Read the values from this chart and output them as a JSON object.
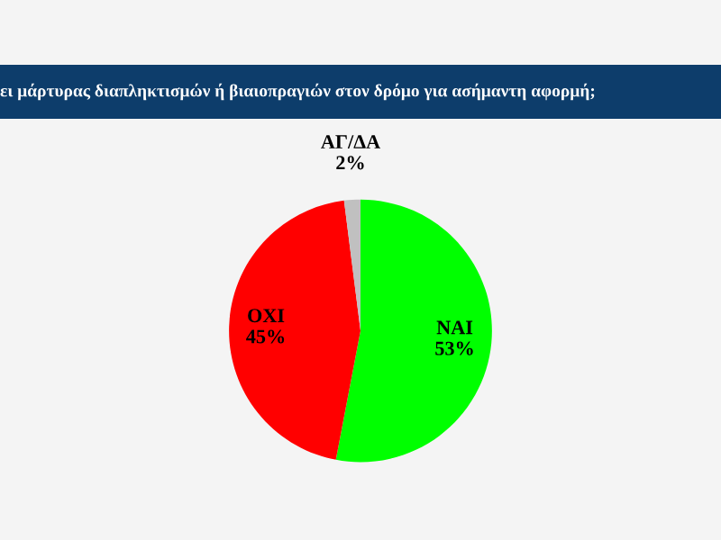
{
  "chart_data": {
    "type": "pie",
    "title": "ει μάρτυρας διαπληκτισμών ή βιαιοπραγιών στον δρόμο για ασήμαντη αφορμή;",
    "categories": [
      "ΝΑΙ",
      "ΟΧΙ",
      "ΑΓ/ΔΑ"
    ],
    "values": [
      53,
      45,
      2
    ],
    "value_labels": [
      "53%",
      "45%",
      "2%"
    ],
    "colors": [
      "#00ff00",
      "#ff0000",
      "#c0c0c0"
    ]
  }
}
